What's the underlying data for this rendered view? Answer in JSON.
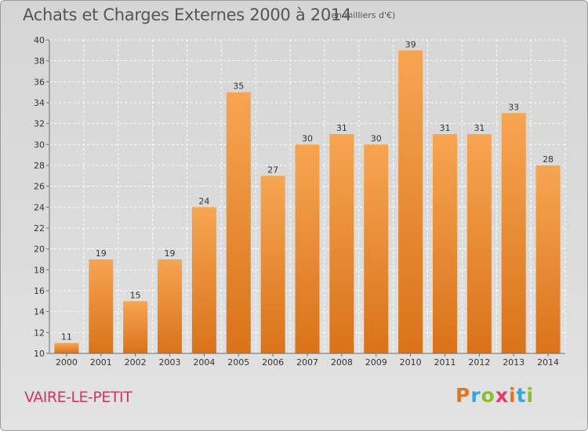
{
  "header": {
    "title": "Achats et Charges Externes 2000 à 2014",
    "subtitle": "(en milliers d'€)"
  },
  "footer": {
    "commune": "VAIRE-LE-PETIT",
    "logo_letters": [
      "P",
      "r",
      "o",
      "x",
      "i",
      "t",
      "i"
    ],
    "logo_colors": [
      "#e2751e",
      "#3aa6d8",
      "#8bbd2c",
      "#e23b6a",
      "#e2751e",
      "#3aa6d8",
      "#8bbd2c"
    ]
  },
  "chart_data": {
    "type": "bar",
    "categories": [
      "2000",
      "2001",
      "2002",
      "2003",
      "2004",
      "2005",
      "2006",
      "2007",
      "2008",
      "2009",
      "2010",
      "2011",
      "2012",
      "2013",
      "2014"
    ],
    "values": [
      11,
      19,
      15,
      19,
      24,
      35,
      27,
      30,
      31,
      30,
      39,
      31,
      31,
      33,
      28
    ],
    "ylim": [
      10,
      40
    ],
    "yticks": [
      10,
      12,
      14,
      16,
      18,
      20,
      22,
      24,
      26,
      28,
      30,
      32,
      34,
      36,
      38,
      40
    ],
    "grid": true,
    "colors": {
      "bar_top": "#f7a552",
      "bar_bottom": "#d9731a",
      "grid": "#ffffff",
      "axis": "#6e6e6e"
    }
  }
}
